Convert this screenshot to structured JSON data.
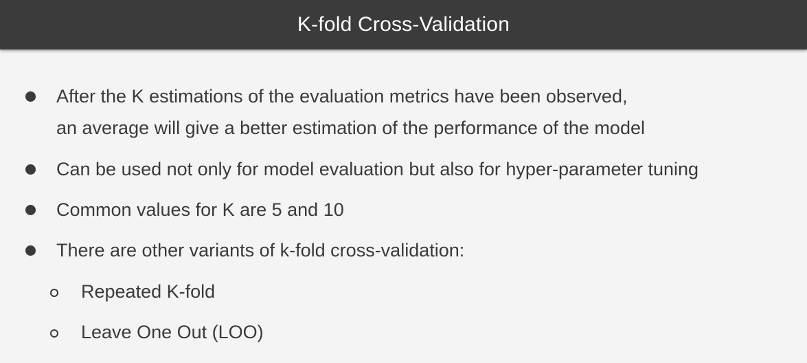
{
  "slide": {
    "title": "K-fold Cross-Validation"
  },
  "bullets": [
    {
      "lines": [
        "After the K estimations of the evaluation metrics have been observed,",
        "an average will give a better estimation of the performance of the model"
      ]
    },
    {
      "lines": [
        "Can be used not only for model evaluation but also for hyper-parameter tuning"
      ]
    },
    {
      "lines": [
        "Common values for K are 5 and 10"
      ]
    },
    {
      "lines": [
        "There are other variants of k-fold cross-validation:"
      ]
    }
  ],
  "sub_bullets": [
    "Repeated K-fold",
    "Leave One Out (LOO)"
  ],
  "icons": {
    "bullet": "filled-circle-bullet-icon",
    "sub_bullet": "hollow-circle-bullet-icon"
  },
  "colors": {
    "title_bar": "#3b3b3b",
    "title_text": "#ffffff",
    "background": "#f4f4f4",
    "body_text": "#3a3a3a"
  }
}
